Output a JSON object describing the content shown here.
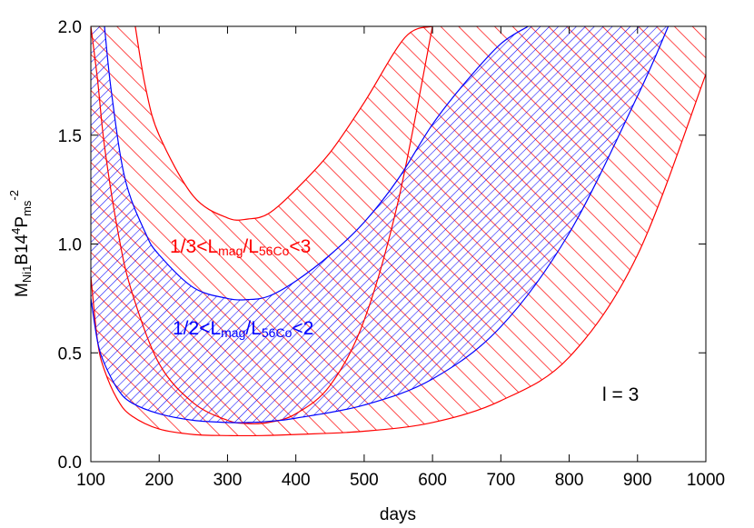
{
  "chart_data": {
    "type": "area",
    "xlabel": "days",
    "ylabel": {
      "parts": [
        "M",
        "Ni1",
        "B",
        "14",
        "4",
        "P",
        "ms",
        "-2"
      ]
    },
    "xlim": [
      100,
      1000
    ],
    "ylim": [
      0,
      2.0
    ],
    "x_ticks": [
      "100",
      "200",
      "300",
      "400",
      "500",
      "600",
      "700",
      "800",
      "900",
      "1000"
    ],
    "y_ticks": [
      "0.0",
      "0.5",
      "1.0",
      "1.5",
      "2.0"
    ],
    "grid": false,
    "legend": "none",
    "series": [
      {
        "name": "1/3<Lmag/L56Co<3",
        "color": "#ff0000",
        "upper": {
          "x": [
            100,
            110,
            120,
            140,
            160,
            200,
            250,
            300,
            330,
            360,
            400,
            450,
            500,
            550,
            600
          ],
          "y": [
            2.0,
            1.75,
            1.45,
            1.05,
            0.78,
            0.45,
            0.27,
            0.19,
            0.175,
            0.18,
            0.22,
            0.35,
            0.65,
            1.2,
            2.0
          ]
        },
        "lower_top": {
          "x": [
            165,
            180,
            200,
            250,
            300,
            330,
            360,
            400,
            450,
            500,
            560,
            600
          ],
          "y": [
            2.0,
            1.72,
            1.5,
            1.22,
            1.12,
            1.115,
            1.14,
            1.25,
            1.42,
            1.65,
            1.95,
            2.0
          ]
        },
        "bottom": {
          "x": [
            100,
            110,
            120,
            140,
            160,
            200,
            250,
            300,
            350,
            400,
            500,
            600,
            700,
            800,
            900,
            1000
          ],
          "y": [
            0.85,
            0.55,
            0.42,
            0.28,
            0.21,
            0.15,
            0.125,
            0.12,
            0.12,
            0.125,
            0.14,
            0.18,
            0.28,
            0.48,
            0.95,
            1.78
          ]
        }
      },
      {
        "name": "1/2<Lmag/L56Co<2",
        "color": "#0000ff",
        "upper": {
          "x": [
            120,
            130,
            150,
            180,
            200,
            250,
            300,
            330,
            360,
            400,
            450,
            500,
            550,
            600,
            650,
            700,
            740
          ],
          "y": [
            2.0,
            1.7,
            1.3,
            1.05,
            0.95,
            0.8,
            0.75,
            0.745,
            0.76,
            0.83,
            0.95,
            1.1,
            1.3,
            1.55,
            1.75,
            1.92,
            2.0
          ]
        },
        "lower": {
          "x": [
            100,
            110,
            120,
            140,
            160,
            200,
            250,
            300,
            330,
            360,
            400,
            500,
            600,
            700,
            800,
            900,
            945
          ],
          "y": [
            0.75,
            0.55,
            0.45,
            0.33,
            0.27,
            0.22,
            0.19,
            0.18,
            0.18,
            0.185,
            0.2,
            0.26,
            0.38,
            0.62,
            1.05,
            1.68,
            2.0
          ]
        }
      }
    ],
    "annotations": {
      "red_region": "1/3<Lmag/L56Co<3",
      "blue_region": "1/2<Lmag/L56Co<2",
      "l_value": "l = 3"
    }
  }
}
